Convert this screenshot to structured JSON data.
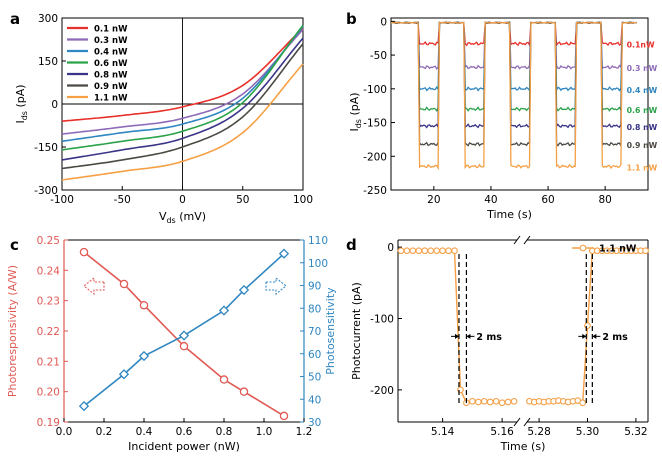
{
  "chart_data": [
    {
      "panel": "a",
      "type": "line",
      "xlabel": "V",
      "xlabel_sub": "ds",
      "xlabel_unit": " (mV)",
      "ylabel": "I",
      "ylabel_sub": "ds",
      "ylabel_unit": " (pA)",
      "xlim": [
        -100,
        100
      ],
      "ylim": [
        -300,
        300
      ],
      "xticks": [
        -100,
        -50,
        0,
        50,
        100
      ],
      "yticks": [
        -300,
        -150,
        0,
        150,
        300
      ],
      "legend_position": "top-left",
      "series": [
        {
          "name": "0.1 nW",
          "color": "#e8302b",
          "x": [
            -100,
            -50,
            0,
            50,
            100
          ],
          "y": [
            -60,
            -40,
            -10,
            65,
            265
          ]
        },
        {
          "name": "0.3 nW",
          "color": "#8e6bb8",
          "x": [
            -100,
            -50,
            0,
            50,
            100
          ],
          "y": [
            -105,
            -80,
            -50,
            35,
            260
          ]
        },
        {
          "name": "0.4 nW",
          "color": "#2f86c0",
          "x": [
            -100,
            -50,
            0,
            50,
            100
          ],
          "y": [
            -130,
            -100,
            -70,
            20,
            270
          ]
        },
        {
          "name": "0.6 nW",
          "color": "#2ca24a",
          "x": [
            -100,
            -50,
            0,
            50,
            100
          ],
          "y": [
            -160,
            -130,
            -95,
            5,
            275
          ]
        },
        {
          "name": "0.8 nW",
          "color": "#3a3487",
          "x": [
            -100,
            -50,
            0,
            50,
            100
          ],
          "y": [
            -195,
            -160,
            -120,
            -15,
            230
          ]
        },
        {
          "name": "0.9 nW",
          "color": "#4d4a44",
          "x": [
            -100,
            -50,
            0,
            50,
            100
          ],
          "y": [
            -225,
            -195,
            -150,
            -45,
            210
          ]
        },
        {
          "name": "1.1 nW",
          "color": "#f5a046",
          "x": [
            -100,
            -50,
            0,
            50,
            100
          ],
          "y": [
            -265,
            -235,
            -200,
            -100,
            140
          ]
        }
      ]
    },
    {
      "panel": "b",
      "type": "line",
      "xlabel": "Time (s)",
      "ylabel": "I",
      "ylabel_sub": "ds",
      "ylabel_unit": " (pA)",
      "xlim": [
        5,
        95
      ],
      "ylim": [
        -250,
        5
      ],
      "xticks": [
        20,
        40,
        60,
        80
      ],
      "yticks": [
        0,
        -50,
        -100,
        -150,
        -200,
        -250
      ],
      "on_intervals": [
        [
          15,
          22
        ],
        [
          31,
          38
        ],
        [
          47,
          54
        ],
        [
          63,
          70
        ],
        [
          79,
          86
        ]
      ],
      "dark_level": -2,
      "series": [
        {
          "name": "0.1nW",
          "color": "#e8302b",
          "on_level": -33
        },
        {
          "name": "0.3 nW",
          "color": "#8e6bb8",
          "on_level": -68
        },
        {
          "name": "0.4 nW",
          "color": "#2f86c0",
          "on_level": -100
        },
        {
          "name": "0.6 nW",
          "color": "#2ca24a",
          "on_level": -130
        },
        {
          "name": "0.8 nW",
          "color": "#3a3487",
          "on_level": -155
        },
        {
          "name": "0.9 nW",
          "color": "#4d4a44",
          "on_level": -182
        },
        {
          "name": "1.1 nW",
          "color": "#f5a046",
          "on_level": -215
        }
      ]
    },
    {
      "panel": "c",
      "type": "line",
      "xlabel": "Incident power (nW)",
      "ylabel_left": "Photoresponsivity (A/W)",
      "ylabel_right": "Photosensitivity",
      "xlim": [
        0,
        1.2
      ],
      "ylim_left": [
        0.19,
        0.25
      ],
      "ylim_right": [
        30,
        110
      ],
      "xticks": [
        0.0,
        0.2,
        0.4,
        0.6,
        0.8,
        1.0,
        1.2
      ],
      "yticks_left": [
        0.19,
        0.2,
        0.21,
        0.22,
        0.23,
        0.24,
        0.25
      ],
      "yticks_right": [
        30,
        40,
        50,
        60,
        70,
        80,
        90,
        100,
        110
      ],
      "x": [
        0.1,
        0.3,
        0.4,
        0.6,
        0.8,
        0.9,
        1.1
      ],
      "series": [
        {
          "name": "Photoresponsivity",
          "axis": "left",
          "color": "#e05a55",
          "marker": "circle",
          "values": [
            0.246,
            0.2355,
            0.2285,
            0.215,
            0.204,
            0.2,
            0.192
          ]
        },
        {
          "name": "Photosensitivity",
          "axis": "right",
          "color": "#2f86c0",
          "marker": "diamond",
          "values": [
            37,
            51,
            59,
            68,
            79,
            88,
            104
          ]
        }
      ]
    },
    {
      "panel": "d",
      "type": "line",
      "xlabel": "Time (s)",
      "ylabel": "Photocurrent (pA)",
      "ylim": [
        -245,
        10
      ],
      "yticks": [
        0,
        -100,
        -200
      ],
      "left_xlim": [
        5.125,
        5.165
      ],
      "left_xticks": [
        5.14,
        5.16
      ],
      "right_xlim": [
        5.275,
        5.325
      ],
      "right_xticks": [
        5.28,
        5.3,
        5.32
      ],
      "legend": "1.1 nW",
      "legend_position": "top-right",
      "color": "#f5a046",
      "annotations": [
        "2 ms",
        "2 ms"
      ],
      "left_t": [
        5.126,
        5.128,
        5.13,
        5.132,
        5.134,
        5.136,
        5.138,
        5.14,
        5.142,
        5.144,
        5.146,
        5.148,
        5.15,
        5.152,
        5.154,
        5.156,
        5.158,
        5.16,
        5.162,
        5.164
      ],
      "left_v": [
        -5,
        -5,
        -5,
        -5,
        -5,
        -5,
        -5,
        -5,
        -5,
        -5,
        -200,
        -218,
        -216,
        -217,
        -216,
        -217,
        -216,
        -218,
        -217,
        -216
      ],
      "right_t": [
        5.276,
        5.278,
        5.28,
        5.282,
        5.284,
        5.286,
        5.288,
        5.29,
        5.292,
        5.294,
        5.296,
        5.298,
        5.3,
        5.302,
        5.304,
        5.306,
        5.308,
        5.31,
        5.312,
        5.314,
        5.316,
        5.318,
        5.32,
        5.322,
        5.324
      ],
      "right_v": [
        -216,
        -217,
        -216,
        -217,
        -216,
        -216,
        -215,
        -216,
        -217,
        -216,
        -215,
        -218,
        -110,
        -5,
        -5,
        -5,
        -5,
        -5,
        -5,
        -5,
        -5,
        -5,
        -5,
        -5,
        -5
      ]
    }
  ],
  "panel_labels": [
    "a",
    "b",
    "c",
    "d"
  ]
}
